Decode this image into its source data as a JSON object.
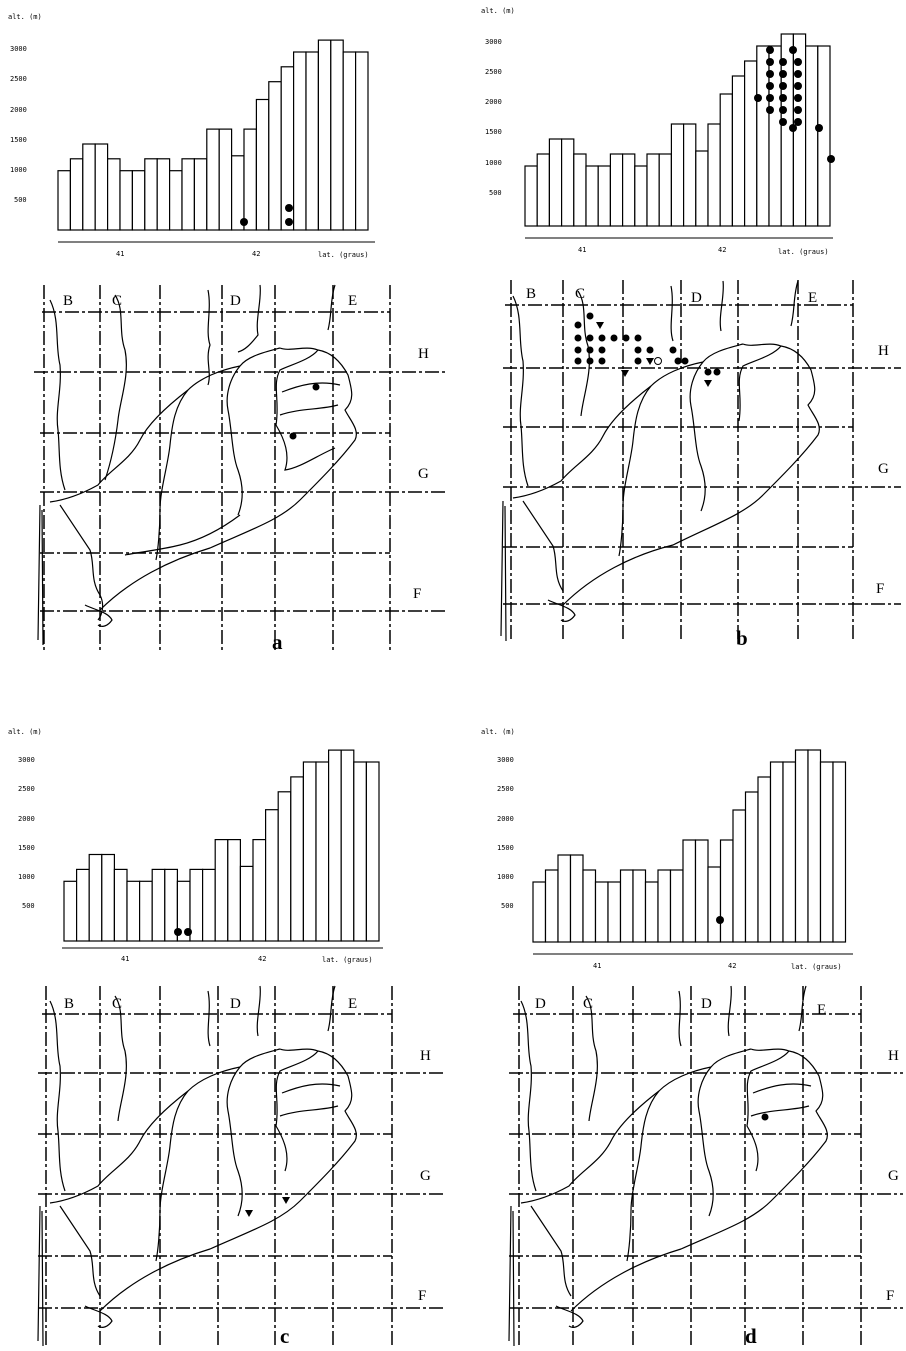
{
  "panels": [
    {
      "id": "a",
      "panel_label": "a",
      "histogram": {
        "ylabel": "alt. (m)",
        "xlabel": "lat. (graus)",
        "yticks": [
          "3000",
          "2500",
          "2000",
          "1500",
          "1000",
          "500"
        ],
        "xticks": [
          "41",
          "42"
        ]
      },
      "map": {
        "grid_labels": [
          "B",
          "C",
          "D",
          "E",
          "H",
          "G",
          "F"
        ]
      }
    },
    {
      "id": "b",
      "panel_label": "b",
      "histogram": {
        "ylabel": "alt. (m)",
        "xlabel": "lat. (graus)",
        "yticks": [
          "3000",
          "2500",
          "2000",
          "1500",
          "1000",
          "500"
        ],
        "xticks": [
          "41",
          "42"
        ]
      },
      "map": {
        "grid_labels": [
          "B",
          "C",
          "D",
          "E",
          "H",
          "G",
          "F"
        ]
      }
    },
    {
      "id": "c",
      "panel_label": "c",
      "histogram": {
        "ylabel": "alt. (m)",
        "xlabel": "lat. (graus)",
        "yticks": [
          "3000",
          "2500",
          "2000",
          "1500",
          "1000",
          "500"
        ],
        "xticks": [
          "41",
          "42"
        ]
      },
      "map": {
        "grid_labels": [
          "B",
          "C",
          "D",
          "E",
          "H",
          "G",
          "F"
        ]
      }
    },
    {
      "id": "d",
      "panel_label": "d",
      "histogram": {
        "ylabel": "alt. (m)",
        "xlabel": "lat. (graus)",
        "yticks": [
          "3000",
          "2500",
          "2000",
          "1500",
          "1000",
          "500"
        ],
        "xticks": [
          "41",
          "42"
        ]
      },
      "map": {
        "grid_labels": [
          "D",
          "C",
          "D",
          "E",
          "H",
          "G",
          "F"
        ]
      }
    }
  ]
}
